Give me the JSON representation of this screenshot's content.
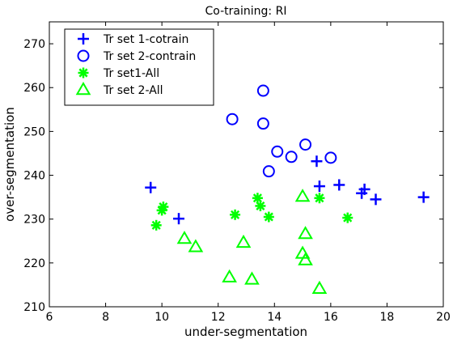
{
  "chart_data": {
    "type": "scatter",
    "title": "Co-training: RI",
    "xlabel": "under-segmentation",
    "ylabel": "over-segmentation",
    "xlim": [
      6,
      20
    ],
    "ylim": [
      210,
      275
    ],
    "xticks": [
      6,
      8,
      10,
      12,
      14,
      16,
      18,
      20
    ],
    "yticks": [
      210,
      220,
      230,
      240,
      250,
      260,
      270
    ],
    "grid": false,
    "legend_position": "top-left",
    "series": [
      {
        "name": "Tr set 1-cotrain",
        "color": "#0000ff",
        "marker": "plus",
        "points": [
          [
            9.6,
            237.2
          ],
          [
            10.6,
            230.1
          ],
          [
            15.5,
            243.2
          ],
          [
            15.6,
            237.5
          ],
          [
            16.3,
            237.8
          ],
          [
            17.1,
            235.9
          ],
          [
            17.2,
            236.8
          ],
          [
            17.6,
            234.5
          ],
          [
            19.3,
            235.0
          ]
        ]
      },
      {
        "name": "Tr set 2-contrain",
        "color": "#0000ff",
        "marker": "circle",
        "points": [
          [
            12.5,
            252.8
          ],
          [
            13.6,
            259.3
          ],
          [
            13.6,
            251.8
          ],
          [
            13.8,
            240.9
          ],
          [
            14.1,
            245.4
          ],
          [
            14.6,
            244.2
          ],
          [
            15.1,
            247.0
          ],
          [
            16.0,
            244.0
          ]
        ]
      },
      {
        "name": "Tr set1-All",
        "color": "#00ff00",
        "marker": "asterisk",
        "points": [
          [
            9.8,
            228.6
          ],
          [
            10.0,
            232.0
          ],
          [
            10.05,
            232.8
          ],
          [
            12.6,
            231.0
          ],
          [
            13.4,
            234.8
          ],
          [
            13.5,
            233.0
          ],
          [
            13.8,
            230.5
          ],
          [
            15.6,
            234.8
          ],
          [
            16.6,
            230.3
          ]
        ]
      },
      {
        "name": "Tr set 2-All",
        "color": "#00ff00",
        "marker": "triangle",
        "points": [
          [
            10.8,
            225.5
          ],
          [
            11.2,
            223.6
          ],
          [
            12.4,
            216.7
          ],
          [
            12.9,
            224.6
          ],
          [
            13.2,
            216.2
          ],
          [
            15.0,
            235.1
          ],
          [
            15.0,
            222.1
          ],
          [
            15.1,
            226.6
          ],
          [
            15.1,
            220.6
          ],
          [
            15.6,
            214.1
          ]
        ]
      }
    ]
  }
}
